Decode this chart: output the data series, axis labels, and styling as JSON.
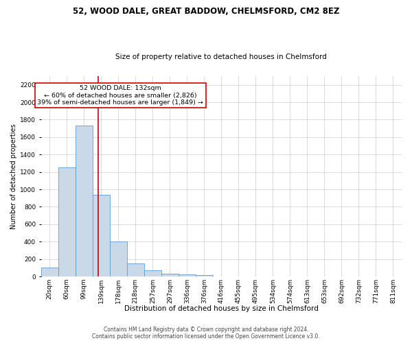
{
  "title1": "52, WOOD DALE, GREAT BADDOW, CHELMSFORD, CM2 8EZ",
  "title2": "Size of property relative to detached houses in Chelmsford",
  "xlabel": "Distribution of detached houses by size in Chelmsford",
  "ylabel": "Number of detached properties",
  "footer1": "Contains HM Land Registry data © Crown copyright and database right 2024.",
  "footer2": "Contains public sector information licensed under the Open Government Licence v3.0.",
  "annotation_line1": "52 WOOD DALE: 132sqm",
  "annotation_line2": "← 60% of detached houses are smaller (2,826)",
  "annotation_line3": "39% of semi-detached houses are larger (1,849) →",
  "bar_labels": [
    "20sqm",
    "60sqm",
    "99sqm",
    "139sqm",
    "178sqm",
    "218sqm",
    "257sqm",
    "297sqm",
    "336sqm",
    "376sqm",
    "416sqm",
    "455sqm",
    "495sqm",
    "534sqm",
    "574sqm",
    "613sqm",
    "653sqm",
    "692sqm",
    "732sqm",
    "771sqm",
    "811sqm"
  ],
  "bar_values": [
    100,
    1250,
    1730,
    940,
    400,
    150,
    70,
    35,
    25,
    20,
    0,
    0,
    0,
    0,
    0,
    0,
    0,
    0,
    0,
    0,
    0
  ],
  "bar_color": "#c9d9e8",
  "bar_edge_color": "#5b9bd5",
  "vline_color": "#cc0000",
  "annotation_box_color": "#cc0000",
  "grid_color": "#cccccc",
  "ylim": [
    0,
    2300
  ],
  "yticks": [
    0,
    200,
    400,
    600,
    800,
    1000,
    1200,
    1400,
    1600,
    1800,
    2000,
    2200
  ],
  "bg_color": "#ffffff",
  "title1_fontsize": 8.5,
  "title2_fontsize": 7.5,
  "ylabel_fontsize": 7.0,
  "xlabel_fontsize": 7.5,
  "tick_fontsize": 6.5,
  "annotation_fontsize": 6.8,
  "footer_fontsize": 5.5
}
